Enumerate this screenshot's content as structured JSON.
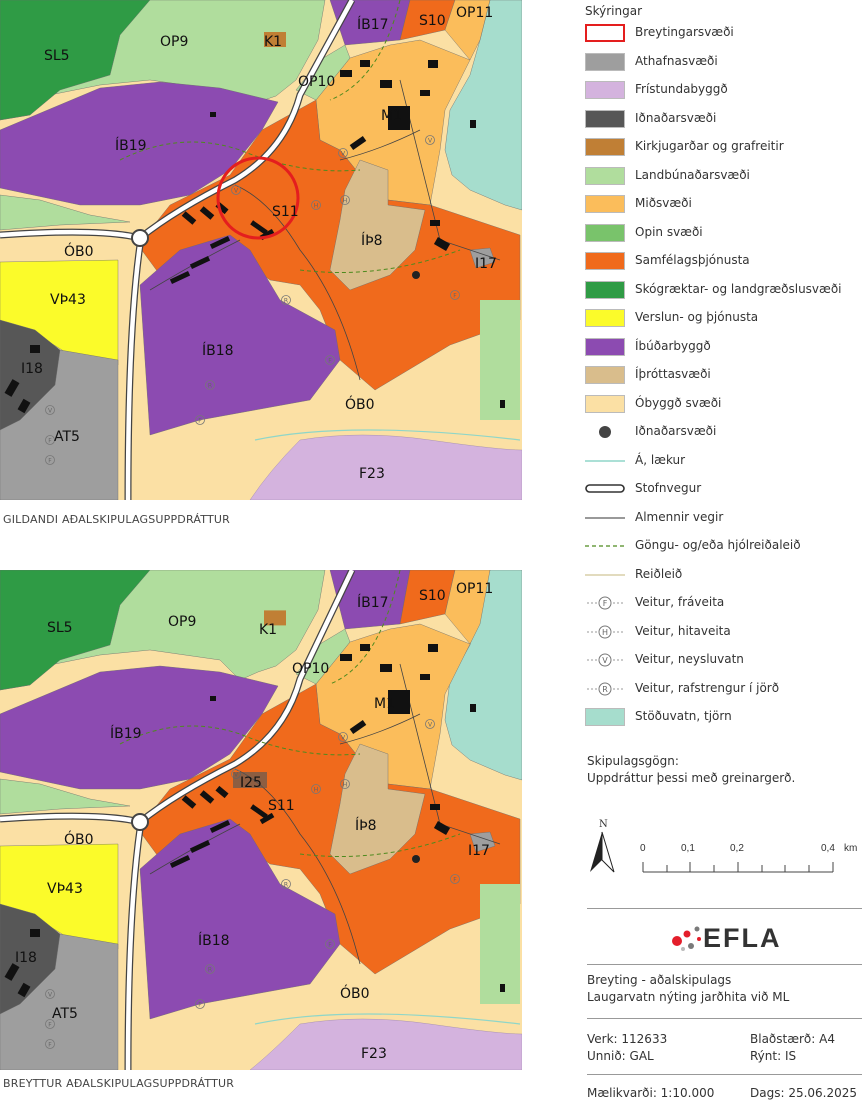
{
  "map_top": {
    "caption": "GILDANDI AÐALSKIPULAGSUPPDRÁTTUR",
    "labels": {
      "sl5": "SL5",
      "op9": "OP9",
      "k1": "K1",
      "ib17": "ÍB17",
      "s10": "S10",
      "op11": "OP11",
      "op10": "OP10",
      "m1": "M1",
      "ib19": "ÍB19",
      "s11": "S11",
      "ob0a": "ÓB0",
      "vth43": "VÞ43",
      "ip8": "ÍÞ8",
      "i17": "I17",
      "ib18": "ÍB18",
      "i18": "I18",
      "at5": "AT5",
      "ob0b": "ÓB0",
      "f23": "F23"
    }
  },
  "map_bottom": {
    "caption": "BREYTTUR AÐALSKIPULAGSUPPDRÁTTUR",
    "labels": {
      "sl5": "SL5",
      "op9": "OP9",
      "k1": "K1",
      "ib17": "ÍB17",
      "s10": "S10",
      "op11": "OP11",
      "op10": "OP10",
      "m1": "M1",
      "ib19": "ÍB19",
      "i25": "I25",
      "s11": "S11",
      "ob0a": "ÓB0",
      "vth43": "VÞ43",
      "ip8": "ÍÞ8",
      "i17": "I17",
      "ib18": "ÍB18",
      "i18": "I18",
      "at5": "AT5",
      "ob0b": "ÓB0",
      "f23": "F23"
    }
  },
  "legend": {
    "title": "Skýringar",
    "items": [
      {
        "label": "Breytingarsvæði",
        "kind": "outline",
        "color": "#e41e1e"
      },
      {
        "label": "Athafnasvæði",
        "kind": "fill",
        "color": "#9e9e9e"
      },
      {
        "label": "Frístundabyggð",
        "kind": "fill",
        "color": "#d4b3de"
      },
      {
        "label": "Iðnaðarsvæði",
        "kind": "fill",
        "color": "#575757"
      },
      {
        "label": "Kirkjugarðar og grafreitir",
        "kind": "fill",
        "color": "#c07f35"
      },
      {
        "label": "Landbúnaðarsvæði",
        "kind": "fill",
        "color": "#b0dd9d"
      },
      {
        "label": "Miðsvæði",
        "kind": "fill",
        "color": "#fbbd5b"
      },
      {
        "label": "Opin svæði",
        "kind": "fill",
        "color": "#79c36b"
      },
      {
        "label": "Samfélagsþjónusta",
        "kind": "fill",
        "color": "#f06a1c"
      },
      {
        "label": "Skógræktar- og landgræðslusvæði",
        "kind": "fill",
        "color": "#2f9b45"
      },
      {
        "label": "Verslun- og þjónusta",
        "kind": "fill",
        "color": "#fbfb2a"
      },
      {
        "label": "Íbúðarbyggð",
        "kind": "fill",
        "color": "#8c4bb1"
      },
      {
        "label": "Íþróttasvæði",
        "kind": "fill",
        "color": "#d9bd8c"
      },
      {
        "label": "Óbyggð svæði",
        "kind": "fill",
        "color": "#fbe0a4"
      },
      {
        "label": "Iðnaðarsvæði",
        "kind": "dot",
        "color": "#444444"
      },
      {
        "label": "Á, lækur",
        "kind": "line-water",
        "color": "#8fd6c8"
      },
      {
        "label": "Stofnvegur",
        "kind": "line-main",
        "color": "#333333"
      },
      {
        "label": "Almennir vegir",
        "kind": "line-road",
        "color": "#333333"
      },
      {
        "label": "Göngu- og/eða hjólreiðaleið",
        "kind": "line-path",
        "color": "#4e8a1e"
      },
      {
        "label": "Reiðleið",
        "kind": "line-ride",
        "color": "#d9cfa8"
      },
      {
        "label": "Veitur, fráveita",
        "kind": "utility",
        "letter": "F"
      },
      {
        "label": "Veitur, hitaveita",
        "kind": "utility",
        "letter": "H"
      },
      {
        "label": "Veitur, neysluvatn",
        "kind": "utility",
        "letter": "V"
      },
      {
        "label": "Veitur, rafstrengur í jörð",
        "kind": "utility",
        "letter": "R"
      },
      {
        "label": "Stöðuvatn, tjörn",
        "kind": "fill",
        "color": "#a6ddcd"
      }
    ]
  },
  "documents": {
    "heading": "Skipulagsgögn:",
    "text": "Uppdráttur þessi með greinargerð."
  },
  "scale": {
    "north": "N",
    "ticks": [
      "0",
      "0,1",
      "0,2",
      "0,4"
    ],
    "unit": "km"
  },
  "title_block": {
    "logo": "EFLA",
    "title_line1": "Breyting - aðalskipulags",
    "title_line2": "Laugarvatn nýting jarðhita við ML",
    "verk": "Verk:  112633",
    "blad": "Blaðstærð: A4",
    "unnid": "Unnið: GAL",
    "rynt": "Rýnt: IS",
    "maelikvardi": "Mælikvarði: 1:10.000",
    "dags": "Dags: 25.06.2025"
  }
}
